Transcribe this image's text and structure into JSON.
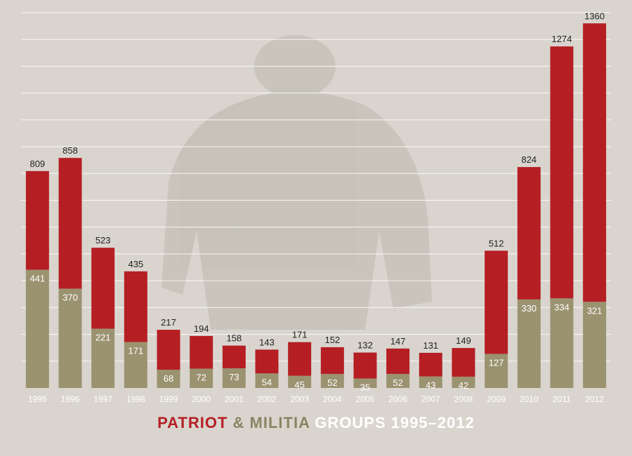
{
  "chart_data": {
    "type": "bar",
    "stacked": true,
    "categories": [
      "1995",
      "1996",
      "1997",
      "1998",
      "1999",
      "2000",
      "2001",
      "2002",
      "2003",
      "2004",
      "2005",
      "2006",
      "2007",
      "2008",
      "2009",
      "2010",
      "2011",
      "2012"
    ],
    "totals": [
      809,
      858,
      523,
      435,
      217,
      194,
      158,
      143,
      171,
      152,
      132,
      147,
      131,
      149,
      512,
      824,
      1274,
      1360
    ],
    "series": [
      {
        "name": "MILITIA",
        "values": [
          441,
          370,
          221,
          171,
          68,
          72,
          73,
          54,
          45,
          52,
          35,
          52,
          43,
          42,
          127,
          330,
          334,
          321
        ]
      },
      {
        "name": "PATRIOT",
        "values": [
          368,
          488,
          302,
          264,
          149,
          122,
          85,
          89,
          126,
          100,
          97,
          95,
          88,
          107,
          385,
          494,
          940,
          1039
        ]
      }
    ],
    "title_parts": [
      {
        "text": "PATRIOT",
        "color": "#b51f24"
      },
      {
        "text": " & MILITIA",
        "color": "#8b8363"
      },
      {
        "text": " GROUPS 1995–2012",
        "color": "#ffffff"
      }
    ],
    "ylim": [
      0,
      1400
    ],
    "grid": true,
    "colors": {
      "patriot": "#b51f24",
      "militia": "#9b9270",
      "background": "#d9d5ce",
      "gridline": "#ffffff",
      "tick_label": "#ffffff",
      "total_label": "#222222",
      "inner_label": "#ffffff"
    }
  }
}
